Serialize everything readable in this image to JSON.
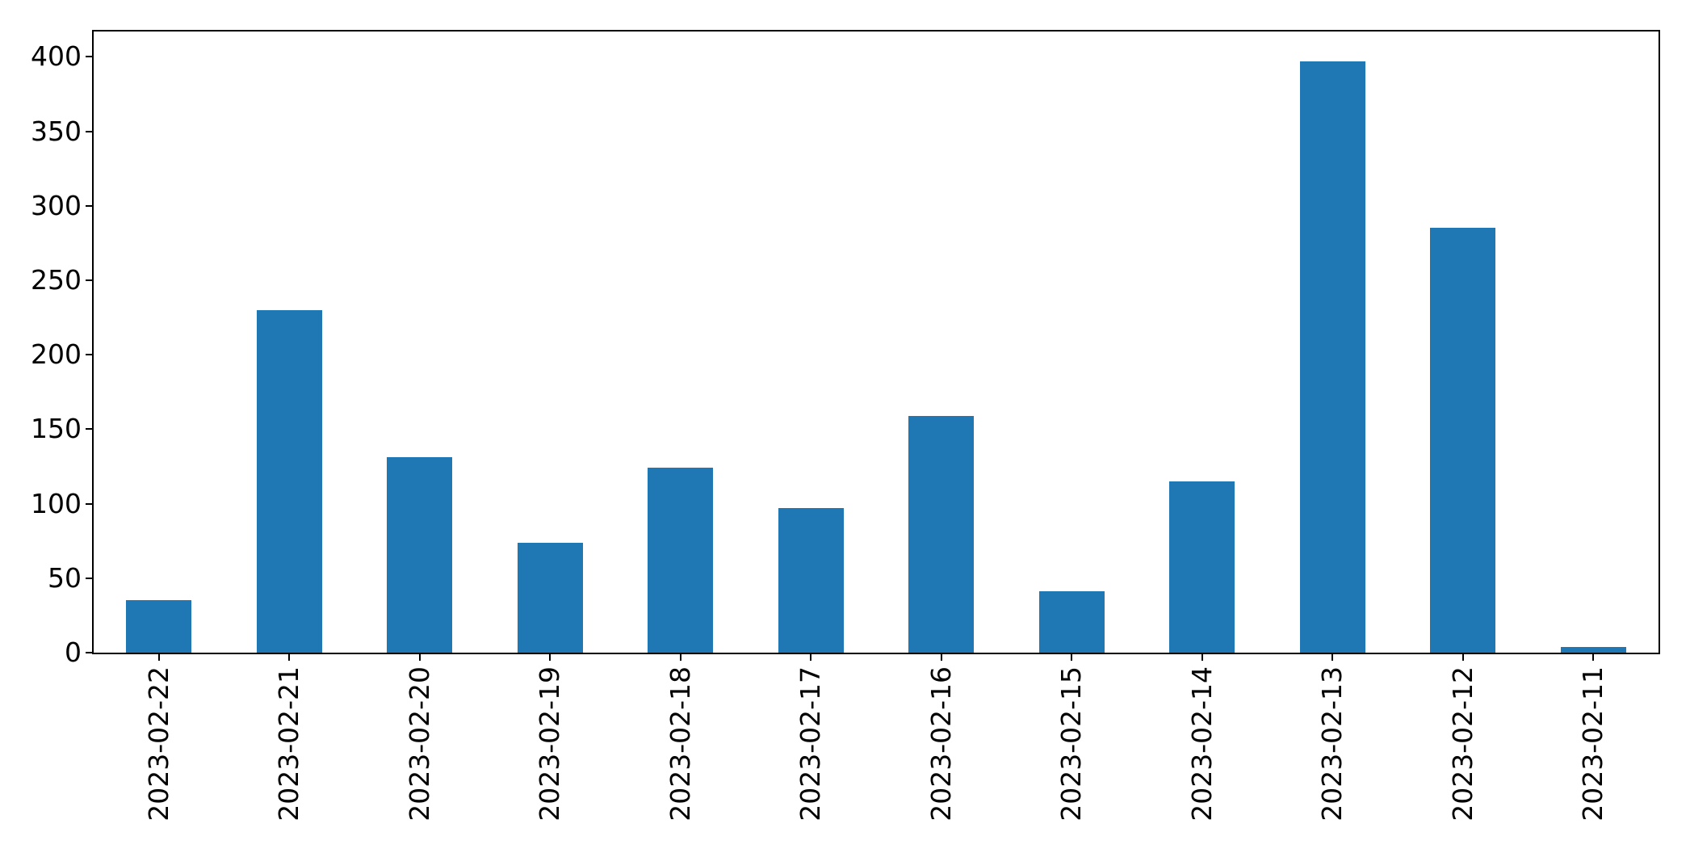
{
  "chart_data": {
    "type": "bar",
    "title": "",
    "xlabel": "",
    "ylabel": "",
    "categories": [
      "2023-02-22",
      "2023-02-21",
      "2023-02-20",
      "2023-02-19",
      "2023-02-18",
      "2023-02-17",
      "2023-02-16",
      "2023-02-15",
      "2023-02-14",
      "2023-02-13",
      "2023-02-12",
      "2023-02-11"
    ],
    "values": [
      35,
      230,
      131,
      74,
      124,
      97,
      159,
      41,
      115,
      397,
      285,
      4
    ],
    "yticks": [
      0,
      50,
      100,
      150,
      200,
      250,
      300,
      350,
      400
    ],
    "ylim": [
      0,
      417
    ],
    "xtick_rotation_deg": 90,
    "grid": false,
    "legend": null,
    "bar_color": "#1f77b4",
    "axis_color": "#000000",
    "background_color": "#ffffff",
    "bar_width_fraction": 0.5
  }
}
